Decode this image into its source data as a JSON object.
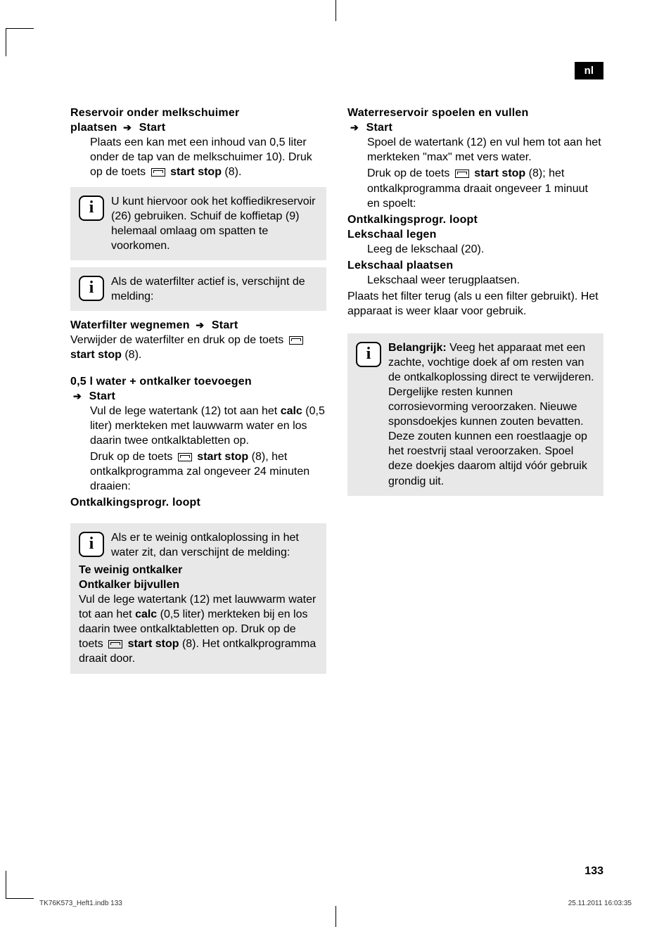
{
  "lang_tag": "nl",
  "page_number": "133",
  "footer": {
    "file": "TK76K573_Heft1.indb   133",
    "timestamp": "25.11.2011   16:03:35"
  },
  "left": {
    "h1_a": "Reservoir onder melkschuimer",
    "h1_b_pre": "plaatsen",
    "h1_b_post": "Start",
    "p1": "Plaats een kan met een inhoud van 0,5 liter onder de tap van de melkschuimer 10). Druk op de toets",
    "p1_btn_label": "start stop",
    "p1_btn_suffix": " (8).",
    "info1": "U kunt hiervoor ook het koffie­dikreservoir (26) gebruiken. Schuif de koffietap (9) helemaal omlaag om spatten te voorkomen.",
    "info2": "Als de waterfilter actief is, verschijnt de melding:",
    "h2_pre": "Waterfilter wegnemen",
    "h2_post": "Start",
    "p2a": "Verwijder de waterfilter en druk op de toets ",
    "p2_btn_label": "start stop",
    "p2_btn_suffix": " (8).",
    "h3": "0,5 l water + ontkalker toevoegen",
    "h3_post": "Start",
    "p3a_pre": "Vul de lege watertank (12) tot aan het ",
    "p3a_bold": "calc",
    "p3a_post": " (0,5 liter) merkteken met lauw­warm water en los daarin twee ontkalk­tabletten op.",
    "p3b_pre": "Druk op de toets ",
    "p3b_btn_label": "start stop",
    "p3b_post": " (8), het ontkalkprogramma zal ongeveer 24 minuten draaien:",
    "h4": "Ontkalkingsprogr. loopt",
    "info3_top": "Als er te weinig ontkaloplossing in het water zit, dan verschijnt de melding:",
    "info3_h1": "Te weinig ontkalker",
    "info3_h2": "Ontkalker bijvullen",
    "info3_body_pre": "Vul de lege watertank (12) met lauwwarm water tot aan het ",
    "info3_body_bold": "calc",
    "info3_body_mid": " (0,5 liter) merkte­ken bij en los daarin twee ontkalktablet­ten op. Druk op de toets ",
    "info3_btn_label": "start stop",
    "info3_body_post": " (8). Het ontkalkprogramma draait door."
  },
  "right": {
    "h1": "Waterreservoir spoelen en vullen",
    "h1_post": "Start",
    "p1": "Spoel de watertank (12) en vul hem tot aan het merkteken \"max\" met vers water.",
    "p2_pre": "Druk op de toets ",
    "p2_btn_label": "start stop",
    "p2_post": " (8); het ontkalkprogramma draait ongeveer 1 minuut en spoelt:",
    "h2": "Ontkalkingsprogr. loopt",
    "h3": "Lekschaal legen",
    "p3": "Leeg de lekschaal (20).",
    "h4": "Lekschaal plaatsen",
    "p4": "Lekschaal weer terugplaatsen.",
    "p5": "Plaats het filter terug (als u een filter ge­bruikt). Het apparaat is weer klaar voor gebruik.",
    "info_bold": "Belangrijk:",
    "info_body": " Veeg het apparaat met een zachte, vochtige doek af om resten van de ontkalkoplossing direct te verwijderen. Dergelijke resten kunnen corrosievorming veroorzaken. Nieuwe sponsdoek­jes kunnen zouten bevatten. Deze zouten kunnen een roestlaagje op het roestvrij staal veroorzaken. Spoel deze doekjes daarom altijd vóór gebruik grondig uit."
  }
}
